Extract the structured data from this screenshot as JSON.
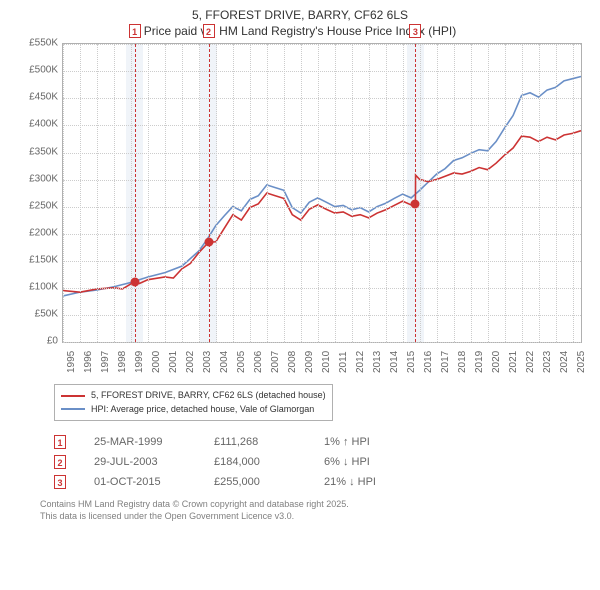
{
  "colors": {
    "series_property": "#cc3333",
    "series_hpi": "#6a8fc7",
    "grid": "#cccccc",
    "axis_text": "#666666",
    "band": "#e6ecf5",
    "marker_border": "#cc3333",
    "footer": "#808080",
    "sale_dot": "#cc3333"
  },
  "typography": {
    "title_fontsize_pt": 9,
    "axis_fontsize_pt": 8,
    "legend_fontsize_pt": 7,
    "table_fontsize_pt": 8,
    "footer_fontsize_pt": 7
  },
  "title": {
    "line1": "5, FFOREST DRIVE, BARRY, CF62 6LS",
    "line2": "Price paid vs. HM Land Registry's House Price Index (HPI)"
  },
  "chart": {
    "type": "line",
    "x_axis": {
      "min_year": 1995,
      "max_year": 2025.5,
      "ticks": [
        1995,
        1996,
        1997,
        1998,
        1999,
        2000,
        2001,
        2002,
        2003,
        2004,
        2005,
        2006,
        2007,
        2008,
        2009,
        2010,
        2011,
        2012,
        2013,
        2014,
        2015,
        2016,
        2017,
        2018,
        2019,
        2020,
        2021,
        2022,
        2023,
        2024,
        2025
      ]
    },
    "y_axis": {
      "min": 0,
      "max": 550000,
      "tick_step": 50000,
      "prefix": "£",
      "labels": [
        "£0",
        "£50K",
        "£100K",
        "£150K",
        "£200K",
        "£250K",
        "£300K",
        "£350K",
        "£400K",
        "£450K",
        "£500K",
        "£550K"
      ]
    },
    "grid_color": "#cccccc",
    "line_width": 1.6,
    "band_year_width": 1,
    "sale_marker_radius": 4.5,
    "series": {
      "property": {
        "color": "#cc3333",
        "points": [
          [
            1995,
            95000
          ],
          [
            1996,
            92000
          ],
          [
            1997,
            98000
          ],
          [
            1998,
            100000
          ],
          [
            1998.5,
            98000
          ],
          [
            1999.22,
            111268
          ],
          [
            1999.5,
            108000
          ],
          [
            2000,
            115000
          ],
          [
            2001,
            120000
          ],
          [
            2001.5,
            118000
          ],
          [
            2002,
            135000
          ],
          [
            2002.5,
            145000
          ],
          [
            2003,
            165000
          ],
          [
            2003.57,
            184000
          ],
          [
            2004,
            185000
          ],
          [
            2004.5,
            210000
          ],
          [
            2005,
            235000
          ],
          [
            2005.5,
            225000
          ],
          [
            2006,
            248000
          ],
          [
            2006.5,
            255000
          ],
          [
            2007,
            275000
          ],
          [
            2007.5,
            270000
          ],
          [
            2008,
            265000
          ],
          [
            2008.5,
            235000
          ],
          [
            2009,
            225000
          ],
          [
            2009.5,
            245000
          ],
          [
            2010,
            253000
          ],
          [
            2010.5,
            245000
          ],
          [
            2011,
            238000
          ],
          [
            2011.5,
            240000
          ],
          [
            2012,
            232000
          ],
          [
            2012.5,
            235000
          ],
          [
            2013,
            229000
          ],
          [
            2013.5,
            238000
          ],
          [
            2014,
            244000
          ],
          [
            2014.5,
            252000
          ],
          [
            2015,
            260000
          ],
          [
            2015.5,
            253000
          ],
          [
            2015.75,
            255000
          ],
          [
            2015.76,
            308000
          ],
          [
            2016,
            300000
          ],
          [
            2016.5,
            296000
          ],
          [
            2017,
            300000
          ],
          [
            2017.5,
            306000
          ],
          [
            2018,
            312000
          ],
          [
            2018.5,
            310000
          ],
          [
            2019,
            315000
          ],
          [
            2019.5,
            322000
          ],
          [
            2020,
            318000
          ],
          [
            2020.5,
            330000
          ],
          [
            2021,
            345000
          ],
          [
            2021.5,
            358000
          ],
          [
            2022,
            380000
          ],
          [
            2022.5,
            378000
          ],
          [
            2023,
            370000
          ],
          [
            2023.5,
            378000
          ],
          [
            2024,
            373000
          ],
          [
            2024.5,
            382000
          ],
          [
            2025,
            385000
          ],
          [
            2025.5,
            390000
          ]
        ]
      },
      "hpi": {
        "color": "#6a8fc7",
        "points": [
          [
            1995,
            85000
          ],
          [
            1996,
            92000
          ],
          [
            1997,
            96000
          ],
          [
            1998,
            102000
          ],
          [
            1999,
            110000
          ],
          [
            2000,
            120000
          ],
          [
            2001,
            128000
          ],
          [
            2002,
            140000
          ],
          [
            2003,
            168000
          ],
          [
            2003.5,
            190000
          ],
          [
            2004,
            215000
          ],
          [
            2004.5,
            233000
          ],
          [
            2005,
            250000
          ],
          [
            2005.5,
            242000
          ],
          [
            2006,
            263000
          ],
          [
            2006.5,
            270000
          ],
          [
            2007,
            290000
          ],
          [
            2007.5,
            285000
          ],
          [
            2008,
            280000
          ],
          [
            2008.5,
            248000
          ],
          [
            2009,
            238000
          ],
          [
            2009.5,
            258000
          ],
          [
            2010,
            266000
          ],
          [
            2010.5,
            258000
          ],
          [
            2011,
            250000
          ],
          [
            2011.5,
            252000
          ],
          [
            2012,
            244000
          ],
          [
            2012.5,
            248000
          ],
          [
            2013,
            240000
          ],
          [
            2013.5,
            250000
          ],
          [
            2014,
            256000
          ],
          [
            2014.5,
            265000
          ],
          [
            2015,
            273000
          ],
          [
            2015.5,
            266000
          ],
          [
            2016,
            280000
          ],
          [
            2016.5,
            295000
          ],
          [
            2017,
            310000
          ],
          [
            2017.5,
            320000
          ],
          [
            2018,
            335000
          ],
          [
            2018.5,
            340000
          ],
          [
            2019,
            348000
          ],
          [
            2019.5,
            355000
          ],
          [
            2020,
            353000
          ],
          [
            2020.5,
            370000
          ],
          [
            2021,
            395000
          ],
          [
            2021.5,
            418000
          ],
          [
            2022,
            455000
          ],
          [
            2022.5,
            460000
          ],
          [
            2023,
            452000
          ],
          [
            2023.5,
            465000
          ],
          [
            2024,
            470000
          ],
          [
            2024.5,
            482000
          ],
          [
            2025,
            486000
          ],
          [
            2025.5,
            490000
          ]
        ]
      }
    },
    "sale_markers": [
      {
        "label": "1",
        "year": 1999.22,
        "value": 111268
      },
      {
        "label": "2",
        "year": 2003.57,
        "value": 184000
      },
      {
        "label": "3",
        "year": 2015.75,
        "value": 255000
      }
    ]
  },
  "legend": {
    "items": [
      {
        "color": "#cc3333",
        "text": "5, FFOREST DRIVE, BARRY, CF62 6LS (detached house)"
      },
      {
        "color": "#6a8fc7",
        "text": "HPI: Average price, detached house, Vale of Glamorgan"
      }
    ]
  },
  "sales_table": {
    "rows": [
      {
        "marker": "1",
        "date": "25-MAR-1999",
        "price": "£111,268",
        "diff": "1% ↑ HPI",
        "arrow": "↑",
        "arrow_color": "#cc3333"
      },
      {
        "marker": "2",
        "date": "29-JUL-2003",
        "price": "£184,000",
        "diff": "6% ↓ HPI",
        "arrow": "↓",
        "arrow_color": "#cc3333"
      },
      {
        "marker": "3",
        "date": "01-OCT-2015",
        "price": "£255,000",
        "diff": "21% ↓ HPI",
        "arrow": "↓",
        "arrow_color": "#cc3333"
      }
    ]
  },
  "footer": {
    "line1": "Contains HM Land Registry data © Crown copyright and database right 2025.",
    "line2": "This data is licensed under the Open Government Licence v3.0.",
    "color": "#808080"
  }
}
